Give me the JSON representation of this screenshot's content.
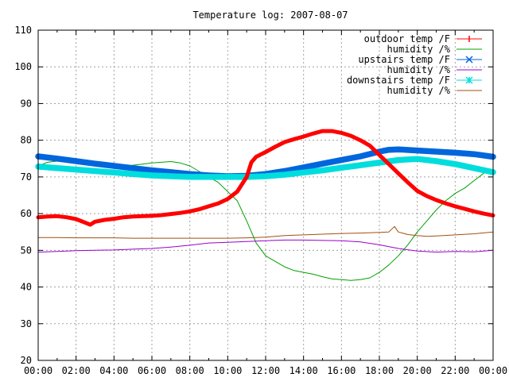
{
  "chart_data": {
    "type": "line",
    "title": "Temperature log: 2007-08-07",
    "xlabel": "",
    "ylabel": "",
    "x_ticks": [
      "00:00",
      "02:00",
      "04:00",
      "06:00",
      "08:00",
      "10:00",
      "12:00",
      "14:00",
      "16:00",
      "18:00",
      "20:00",
      "22:00",
      "00:00"
    ],
    "y_ticks": [
      20,
      30,
      40,
      50,
      60,
      70,
      80,
      90,
      100,
      110
    ],
    "xlim": [
      0,
      24
    ],
    "ylim": [
      20,
      110
    ],
    "grid": true,
    "legend_position": "top-right",
    "series": [
      {
        "name": "outdoor temp /F",
        "color": "#ff0000",
        "marker": "plus",
        "x": [
          0,
          0.5,
          1,
          1.5,
          2,
          2.5,
          2.75,
          3,
          3.5,
          4,
          4.5,
          5,
          5.5,
          6,
          6.5,
          7,
          7.5,
          8,
          8.5,
          9,
          9.5,
          10,
          10.5,
          11,
          11.25,
          11.5,
          12,
          12.5,
          13,
          13.5,
          14,
          14.5,
          15,
          15.5,
          16,
          16.5,
          17,
          17.5,
          18,
          18.5,
          19,
          19.5,
          20,
          20.5,
          21,
          21.5,
          22,
          22.5,
          23,
          23.5,
          24
        ],
        "values": [
          59,
          59.2,
          59.3,
          59,
          58.5,
          57.5,
          57,
          57.8,
          58.3,
          58.6,
          59,
          59.2,
          59.3,
          59.4,
          59.6,
          59.9,
          60.2,
          60.6,
          61.2,
          62,
          62.8,
          64,
          66,
          70,
          74,
          75.5,
          76.8,
          78.2,
          79.5,
          80.3,
          81,
          81.8,
          82.5,
          82.5,
          82,
          81.2,
          80,
          78.5,
          76,
          73.5,
          71,
          68.5,
          66.2,
          64.8,
          63.7,
          62.8,
          62,
          61.3,
          60.6,
          60,
          59.5
        ]
      },
      {
        "name": "humidity /%",
        "color": "#00a000",
        "marker": "line",
        "x": [
          0,
          0.5,
          1,
          1.5,
          2,
          2.5,
          3,
          3.5,
          4,
          4.5,
          5,
          5.5,
          6,
          6.5,
          7,
          7.5,
          8,
          8.5,
          9,
          9.5,
          10,
          10.5,
          11,
          11.25,
          11.5,
          12,
          12.5,
          13,
          13.5,
          14,
          14.5,
          15,
          15.5,
          16,
          16.5,
          17,
          17.5,
          18,
          18.5,
          19,
          19.5,
          20,
          20.5,
          21,
          21.5,
          22,
          22.5,
          23,
          23.5,
          24
        ],
        "values": [
          73,
          74,
          74.3,
          74,
          73.8,
          73.6,
          73.5,
          73.3,
          73.2,
          73,
          73.2,
          73.5,
          73.8,
          74,
          74.2,
          73.8,
          73,
          71.5,
          70,
          68.5,
          66,
          63.5,
          58,
          55,
          52,
          48.5,
          47,
          45.5,
          44.5,
          44,
          43.5,
          42.8,
          42.2,
          42,
          41.8,
          42,
          42.5,
          44,
          46,
          48.5,
          51.5,
          55,
          58,
          61,
          63.5,
          65.5,
          67,
          69,
          71,
          72
        ]
      },
      {
        "name": "upstairs temp /F",
        "color": "#0066dd",
        "marker": "cross",
        "x": [
          0,
          1,
          2,
          3,
          4,
          5,
          6,
          7,
          8,
          9,
          10,
          11,
          12,
          13,
          14,
          15,
          16,
          17,
          18,
          18.5,
          19,
          20,
          21,
          22,
          23,
          24
        ],
        "values": [
          75.6,
          75,
          74.3,
          73.6,
          73,
          72.4,
          71.8,
          71.3,
          70.8,
          70.4,
          70.2,
          70.3,
          70.8,
          71.6,
          72.6,
          73.6,
          74.6,
          75.6,
          76.9,
          77.4,
          77.5,
          77.2,
          76.9,
          76.6,
          76.2,
          75.5
        ]
      },
      {
        "name": "humidity /%",
        "color": "#9900cc",
        "marker": "line",
        "x": [
          0,
          1,
          2,
          3,
          4,
          5,
          6,
          7,
          8,
          9,
          10,
          11,
          12,
          13,
          14,
          15,
          16,
          17,
          18,
          19,
          20,
          21,
          22,
          23,
          24
        ],
        "values": [
          49.5,
          49.7,
          49.9,
          50,
          50.1,
          50.3,
          50.5,
          50.9,
          51.4,
          52,
          52.2,
          52.4,
          52.6,
          52.8,
          52.8,
          52.7,
          52.6,
          52.3,
          51.5,
          50.5,
          49.8,
          49.5,
          49.7,
          49.6,
          50
        ]
      },
      {
        "name": "downstairs temp /F",
        "color": "#00dddd",
        "marker": "star",
        "x": [
          0,
          1,
          2,
          3,
          4,
          5,
          6,
          7,
          8,
          9,
          10,
          11,
          12,
          13,
          14,
          15,
          16,
          17,
          18,
          19,
          20,
          21,
          22,
          23,
          24
        ],
        "values": [
          72.8,
          72.4,
          72,
          71.6,
          71.2,
          70.8,
          70.4,
          70.2,
          70,
          70,
          70,
          70,
          70.2,
          70.6,
          71.2,
          71.8,
          72.5,
          73.2,
          73.9,
          74.6,
          74.9,
          74.3,
          73.5,
          72.4,
          71.3
        ]
      },
      {
        "name": "humidity /%",
        "color": "#a05010",
        "marker": "line",
        "x": [
          0,
          1,
          2,
          3,
          4,
          5,
          6,
          7,
          8,
          9,
          10,
          11,
          12,
          13,
          14,
          15,
          16,
          17,
          18,
          18.5,
          18.8,
          19,
          19.5,
          20,
          20.5,
          21,
          22,
          23,
          24
        ],
        "values": [
          53.5,
          53.5,
          53.4,
          53.4,
          53.4,
          53.3,
          53.3,
          53.3,
          53.3,
          53.3,
          53.3,
          53.4,
          53.6,
          54,
          54.2,
          54.4,
          54.6,
          54.7,
          54.9,
          55,
          56.5,
          55,
          54.3,
          54,
          53.8,
          53.9,
          54.2,
          54.5,
          55
        ]
      }
    ]
  }
}
